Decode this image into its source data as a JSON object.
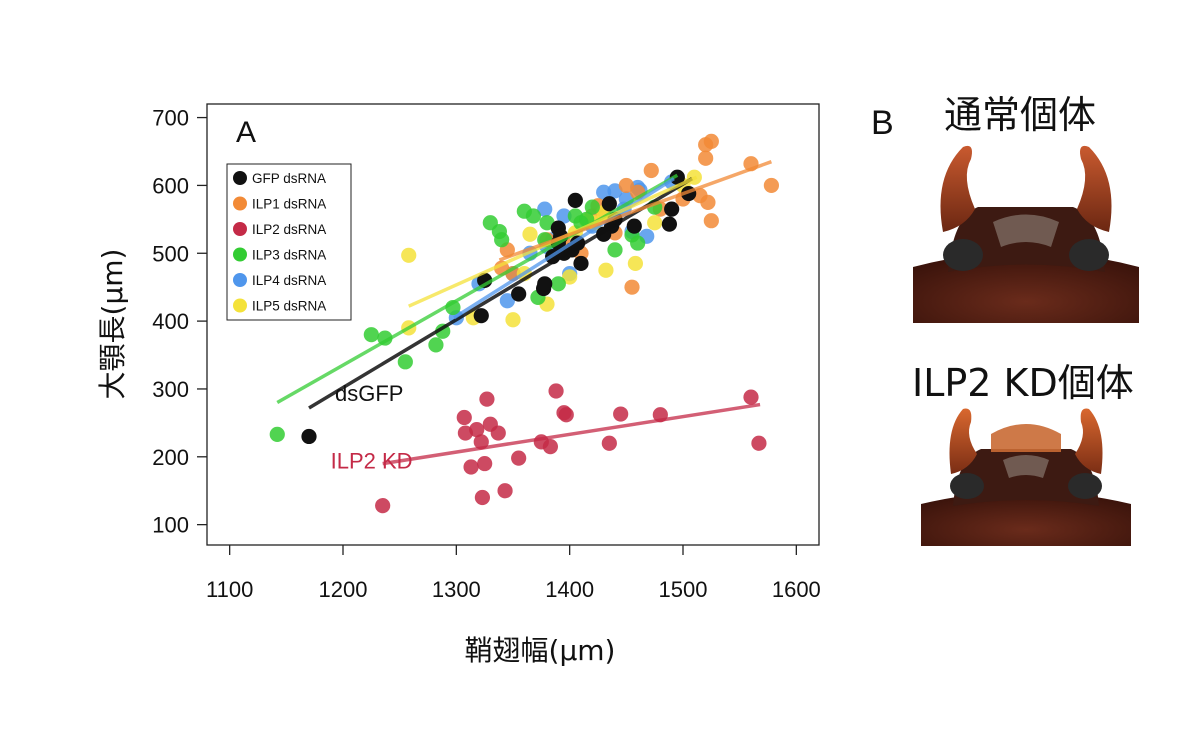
{
  "panel_b": {
    "label": "B",
    "top_photo_label": "通常個体",
    "bottom_photo_label": "ILP2 KD個体"
  },
  "colors": {
    "GFP": "#111111",
    "ILP1": "#f28a36",
    "ILP2": "#c42a47",
    "ILP3": "#33cc33",
    "ILP4": "#4f96ec",
    "ILP5": "#f4e23a"
  },
  "chart_data": {
    "type": "scatter",
    "panel_label": "A",
    "xlabel": "鞘翅幅(μm)",
    "ylabel": "大顎長(μm)",
    "xlim": [
      1080,
      1620
    ],
    "ylim": [
      70,
      720
    ],
    "xticks": [
      1100,
      1200,
      1300,
      1400,
      1500,
      1600
    ],
    "yticks": [
      100,
      200,
      300,
      400,
      500,
      600,
      700
    ],
    "legend_position": "top-left",
    "series": [
      {
        "name": "GFP dsRNA",
        "color_key": "GFP",
        "points": [
          [
            1170,
            230
          ],
          [
            1322,
            408
          ],
          [
            1325,
            460
          ],
          [
            1355,
            440
          ],
          [
            1377,
            448
          ],
          [
            1378,
            455
          ],
          [
            1385,
            495
          ],
          [
            1390,
            537
          ],
          [
            1392,
            525
          ],
          [
            1395,
            500
          ],
          [
            1402,
            505
          ],
          [
            1405,
            578
          ],
          [
            1407,
            515
          ],
          [
            1410,
            485
          ],
          [
            1435,
            573
          ],
          [
            1437,
            540
          ],
          [
            1440,
            550
          ],
          [
            1457,
            540
          ],
          [
            1488,
            543
          ],
          [
            1490,
            565
          ],
          [
            1495,
            612
          ],
          [
            1505,
            588
          ],
          [
            1430,
            528
          ],
          [
            1390,
            515
          ]
        ]
      },
      {
        "name": "ILP1 dsRNA",
        "color_key": "ILP1",
        "points": [
          [
            1340,
            478
          ],
          [
            1345,
            505
          ],
          [
            1350,
            470
          ],
          [
            1380,
            520
          ],
          [
            1395,
            515
          ],
          [
            1410,
            500
          ],
          [
            1420,
            555
          ],
          [
            1425,
            570
          ],
          [
            1430,
            555
          ],
          [
            1450,
            600
          ],
          [
            1455,
            450
          ],
          [
            1460,
            590
          ],
          [
            1472,
            622
          ],
          [
            1480,
            565
          ],
          [
            1500,
            580
          ],
          [
            1515,
            585
          ],
          [
            1520,
            660
          ],
          [
            1520,
            640
          ],
          [
            1525,
            665
          ],
          [
            1522,
            575
          ],
          [
            1525,
            548
          ],
          [
            1560,
            632
          ],
          [
            1578,
            600
          ],
          [
            1440,
            530
          ]
        ]
      },
      {
        "name": "ILP2 dsRNA",
        "color_key": "ILP2",
        "points": [
          [
            1235,
            128
          ],
          [
            1307,
            258
          ],
          [
            1308,
            235
          ],
          [
            1313,
            185
          ],
          [
            1318,
            240
          ],
          [
            1322,
            222
          ],
          [
            1323,
            140
          ],
          [
            1325,
            190
          ],
          [
            1327,
            285
          ],
          [
            1330,
            248
          ],
          [
            1337,
            235
          ],
          [
            1343,
            150
          ],
          [
            1355,
            198
          ],
          [
            1375,
            222
          ],
          [
            1383,
            215
          ],
          [
            1388,
            297
          ],
          [
            1395,
            265
          ],
          [
            1397,
            262
          ],
          [
            1435,
            220
          ],
          [
            1445,
            263
          ],
          [
            1480,
            262
          ],
          [
            1560,
            288
          ],
          [
            1567,
            220
          ]
        ]
      },
      {
        "name": "ILP3 dsRNA",
        "color_key": "ILP3",
        "points": [
          [
            1142,
            233
          ],
          [
            1225,
            380
          ],
          [
            1237,
            375
          ],
          [
            1255,
            340
          ],
          [
            1282,
            365
          ],
          [
            1288,
            385
          ],
          [
            1297,
            420
          ],
          [
            1330,
            545
          ],
          [
            1338,
            532
          ],
          [
            1340,
            520
          ],
          [
            1360,
            562
          ],
          [
            1368,
            555
          ],
          [
            1372,
            435
          ],
          [
            1378,
            520
          ],
          [
            1380,
            545
          ],
          [
            1390,
            455
          ],
          [
            1405,
            555
          ],
          [
            1410,
            545
          ],
          [
            1415,
            550
          ],
          [
            1420,
            568
          ],
          [
            1440,
            505
          ],
          [
            1455,
            527
          ],
          [
            1475,
            568
          ],
          [
            1460,
            515
          ]
        ]
      },
      {
        "name": "ILP4 dsRNA",
        "color_key": "ILP4",
        "points": [
          [
            1300,
            405
          ],
          [
            1320,
            455
          ],
          [
            1345,
            430
          ],
          [
            1350,
            470
          ],
          [
            1365,
            500
          ],
          [
            1378,
            565
          ],
          [
            1385,
            520
          ],
          [
            1395,
            555
          ],
          [
            1400,
            470
          ],
          [
            1420,
            540
          ],
          [
            1430,
            590
          ],
          [
            1440,
            592
          ],
          [
            1448,
            565
          ],
          [
            1455,
            532
          ],
          [
            1460,
            597
          ],
          [
            1462,
            593
          ],
          [
            1468,
            525
          ],
          [
            1490,
            605
          ],
          [
            1380,
            510
          ],
          [
            1450,
            580
          ]
        ]
      },
      {
        "name": "ILP5 dsRNA",
        "color_key": "ILP5",
        "points": [
          [
            1258,
            497
          ],
          [
            1258,
            390
          ],
          [
            1315,
            405
          ],
          [
            1350,
            402
          ],
          [
            1365,
            528
          ],
          [
            1380,
            425
          ],
          [
            1400,
            465
          ],
          [
            1405,
            530
          ],
          [
            1422,
            545
          ],
          [
            1430,
            560
          ],
          [
            1432,
            475
          ],
          [
            1458,
            485
          ],
          [
            1475,
            545
          ],
          [
            1500,
            600
          ],
          [
            1510,
            612
          ],
          [
            1360,
            470
          ],
          [
            1415,
            548
          ]
        ]
      }
    ],
    "fit_lines": [
      {
        "color_key": "ILP3",
        "x": [
          1142,
          1495
        ],
        "y": [
          280,
          615
        ]
      },
      {
        "color_key": "GFP",
        "x": [
          1170,
          1508
        ],
        "y": [
          272,
          610
        ]
      },
      {
        "color_key": "ILP4",
        "x": [
          1298,
          1492
        ],
        "y": [
          405,
          610
        ]
      },
      {
        "color_key": "ILP5",
        "x": [
          1258,
          1512
        ],
        "y": [
          422,
          612
        ]
      },
      {
        "color_key": "ILP1",
        "x": [
          1338,
          1578
        ],
        "y": [
          490,
          635
        ]
      },
      {
        "color_key": "ILP2",
        "x": [
          1235,
          1568
        ],
        "y": [
          190,
          277
        ]
      }
    ],
    "annotations": [
      {
        "text": "dsGFP",
        "x": 1170,
        "y": 282,
        "color_key": "GFP"
      },
      {
        "text": "ILP2 KD",
        "x": 1182,
        "y": 183,
        "color_key": "ILP2"
      }
    ]
  }
}
